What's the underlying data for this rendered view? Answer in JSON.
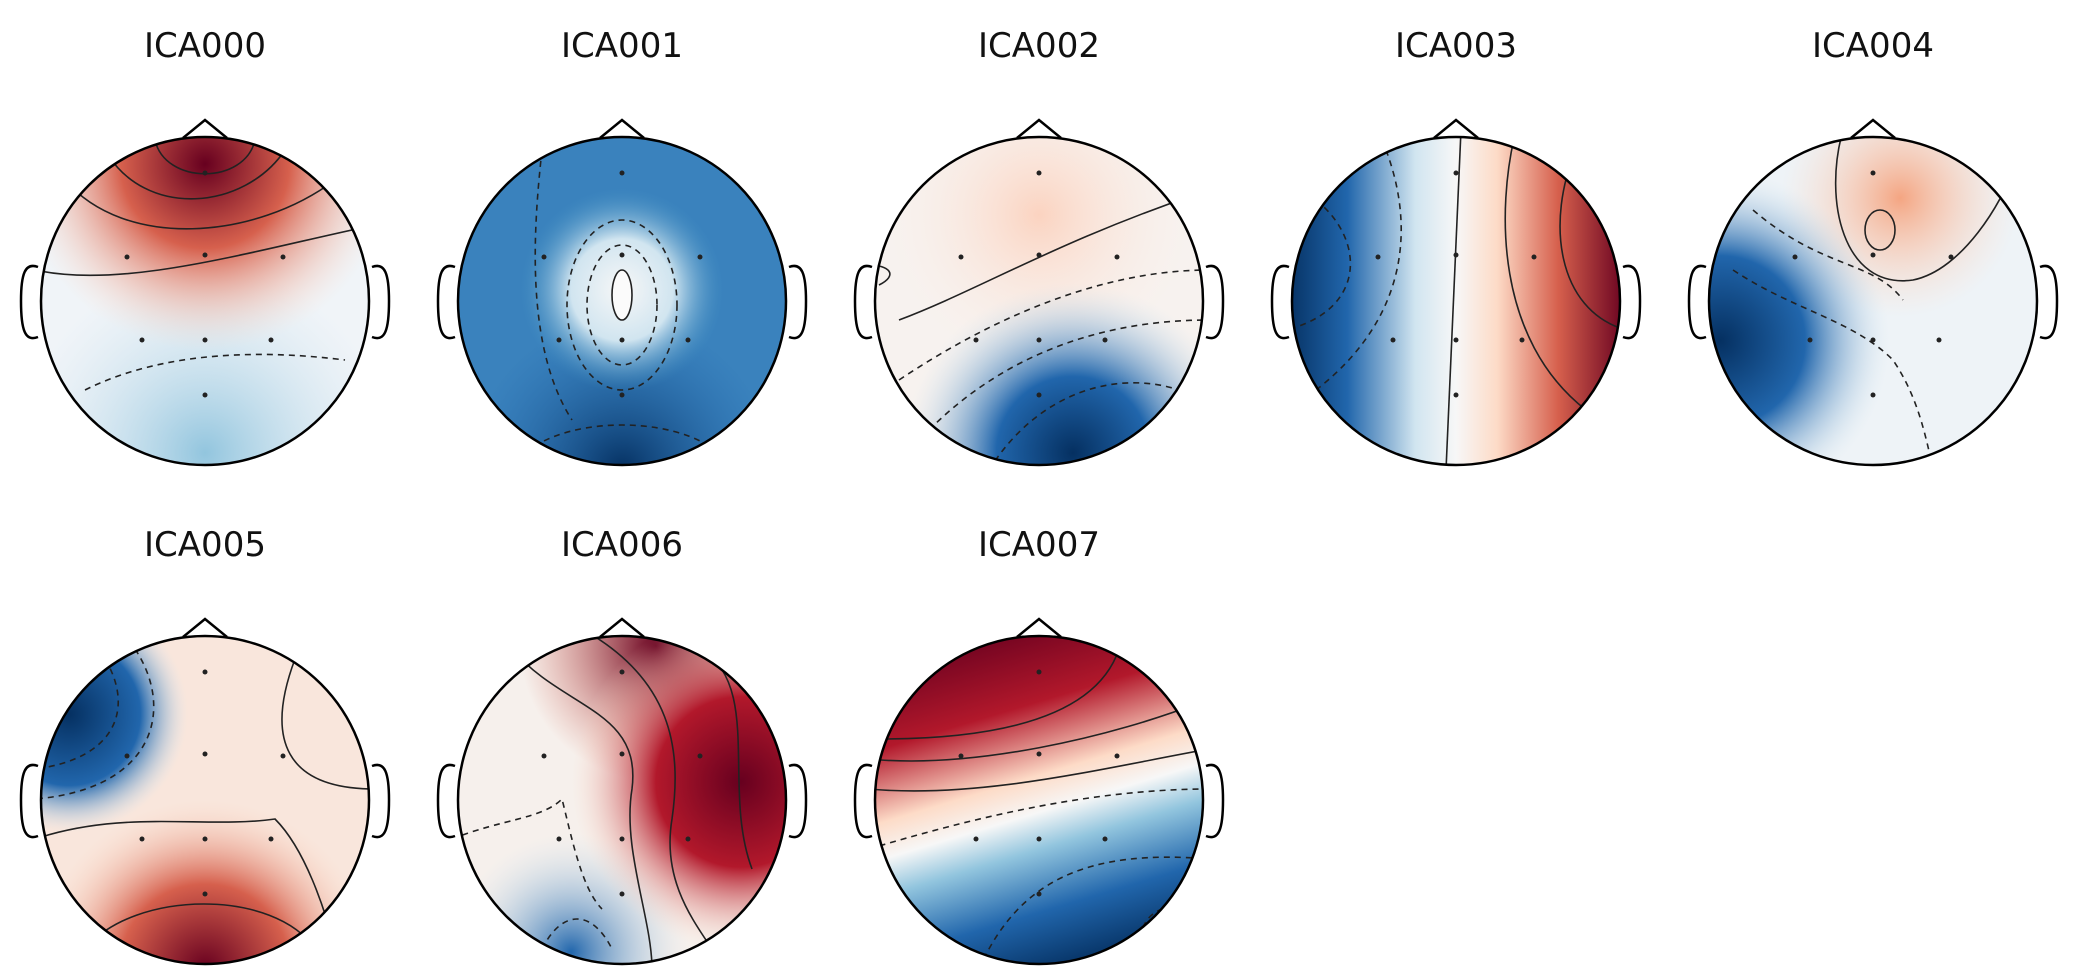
{
  "figure": {
    "colormap": "RdBu_r",
    "colors": {
      "positive": "#67001f",
      "neutral": "#f7f7f7",
      "negative": "#053061",
      "outline": "#000000"
    },
    "components": [
      {
        "name": "ICA000",
        "icon": "topomap-icon",
        "pattern": "frontal positive, posterior negative"
      },
      {
        "name": "ICA001",
        "icon": "topomap-icon",
        "pattern": "global negative with central minimum"
      },
      {
        "name": "ICA002",
        "icon": "topomap-icon",
        "pattern": "weak frontal positive, posterior negative"
      },
      {
        "name": "ICA003",
        "icon": "topomap-icon",
        "pattern": "left negative, right positive"
      },
      {
        "name": "ICA004",
        "icon": "topomap-icon",
        "pattern": "frontal positive focus, left negative"
      },
      {
        "name": "ICA005",
        "icon": "topomap-icon",
        "pattern": "left-frontal negative, occipital positive"
      },
      {
        "name": "ICA006",
        "icon": "topomap-icon",
        "pattern": "right/frontal positive, left-posterior negative"
      },
      {
        "name": "ICA007",
        "icon": "topomap-icon",
        "pattern": "anterior positive, posterior negative"
      }
    ]
  }
}
